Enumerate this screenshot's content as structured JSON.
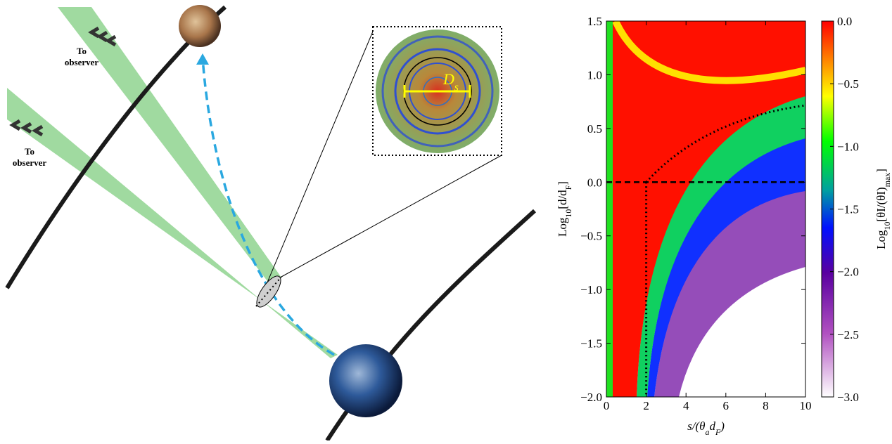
{
  "diagram": {
    "beam_labels": [
      [
        "To",
        "observer"
      ],
      [
        "To",
        "observer"
      ]
    ],
    "inset_label": [
      {
        "t": "D"
      },
      {
        "t": "s",
        "sub": true
      }
    ]
  },
  "chart_data": {
    "type": "heatmap",
    "xlabel": [
      {
        "t": "s/(θ"
      },
      {
        "t": "a",
        "sub": true
      },
      {
        "t": "d"
      },
      {
        "t": "F",
        "sub": true
      },
      {
        "t": ")"
      }
    ],
    "ylabel": [
      {
        "t": "Log"
      },
      {
        "t": "10",
        "sub": true
      },
      {
        "t": "[d/d"
      },
      {
        "t": "F",
        "sub": true
      },
      {
        "t": "]"
      }
    ],
    "colorbar_label": [
      {
        "t": "Log"
      },
      {
        "t": "10",
        "sub": true
      },
      {
        "t": "[θI/(θI)"
      },
      {
        "t": "max",
        "sub": true
      },
      {
        "t": "]"
      }
    ],
    "xlim": [
      0,
      10
    ],
    "xticks": [
      0,
      2,
      4,
      6,
      8,
      10
    ],
    "ylim": [
      -2,
      1.5
    ],
    "yticks": [
      {
        "value": -2,
        "label": "−2.0"
      },
      {
        "value": -1.5,
        "label": "−1.5"
      },
      {
        "value": -1,
        "label": "−1.0"
      },
      {
        "value": -0.5,
        "label": "−0.5"
      },
      {
        "value": 0,
        "label": "0.0"
      },
      {
        "value": 0.5,
        "label": "0.5"
      },
      {
        "value": 1,
        "label": "1.0"
      },
      {
        "value": 1.5,
        "label": "1.5"
      }
    ],
    "clim": [
      -3,
      0
    ],
    "cticks": [
      {
        "value": -3,
        "label": "−3.0"
      },
      {
        "value": -2.5,
        "label": "−2.5"
      },
      {
        "value": -2,
        "label": "−2.0"
      },
      {
        "value": -1.5,
        "label": "−1.5"
      },
      {
        "value": -1,
        "label": "−1.0"
      },
      {
        "value": -0.5,
        "label": "−0.5"
      },
      {
        "value": 0,
        "label": "0.0"
      }
    ],
    "hline": 0,
    "vline": 2
  }
}
